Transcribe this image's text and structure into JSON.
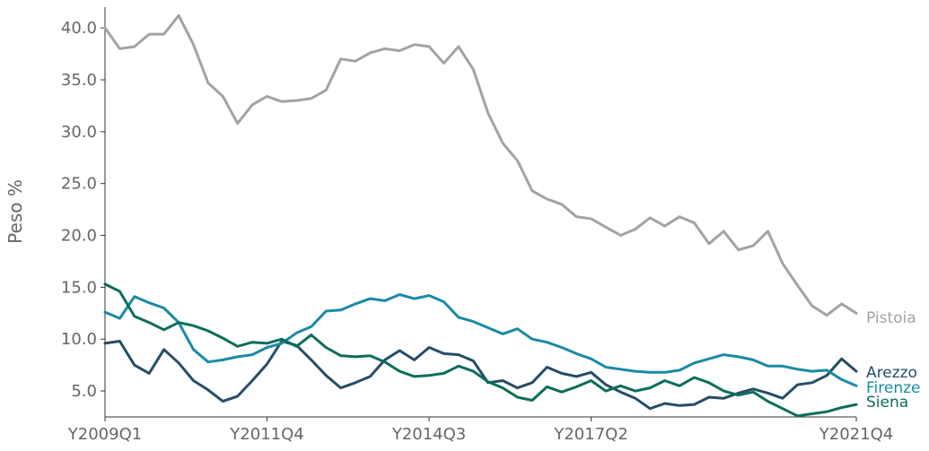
{
  "chart_data": {
    "type": "line",
    "ylabel": "Peso %",
    "xlabel": "",
    "ylim": [
      2.5,
      42.0
    ],
    "yticks": [
      5.0,
      10.0,
      15.0,
      20.0,
      25.0,
      30.0,
      35.0,
      40.0
    ],
    "ytick_labels": [
      "5.0",
      "10.0",
      "15.0",
      "20.0",
      "25.0",
      "30.0",
      "35.0",
      "40.0"
    ],
    "xtick_labels": [
      "Y2009Q1",
      "Y2011Q4",
      "Y2014Q3",
      "Y2017Q2",
      "Y2021Q4"
    ],
    "xtick_indices": [
      0,
      11,
      22,
      33,
      51
    ],
    "grid": false,
    "legend": "end-of-line labels",
    "x": [
      "Y2009Q1",
      "Y2009Q2",
      "Y2009Q3",
      "Y2009Q4",
      "Y2010Q1",
      "Y2010Q2",
      "Y2010Q3",
      "Y2010Q4",
      "Y2011Q1",
      "Y2011Q2",
      "Y2011Q3",
      "Y2011Q4",
      "Y2012Q1",
      "Y2012Q2",
      "Y2012Q3",
      "Y2012Q4",
      "Y2013Q1",
      "Y2013Q2",
      "Y2013Q3",
      "Y2013Q4",
      "Y2014Q1",
      "Y2014Q2",
      "Y2014Q3",
      "Y2014Q4",
      "Y2015Q1",
      "Y2015Q2",
      "Y2015Q3",
      "Y2015Q4",
      "Y2016Q1",
      "Y2016Q2",
      "Y2016Q3",
      "Y2016Q4",
      "Y2017Q1",
      "Y2017Q2",
      "Y2017Q3",
      "Y2017Q4",
      "Y2018Q1",
      "Y2018Q2",
      "Y2018Q3",
      "Y2018Q4",
      "Y2019Q1",
      "Y2019Q2",
      "Y2019Q3",
      "Y2019Q4",
      "Y2020Q1",
      "Y2020Q2",
      "Y2020Q3",
      "Y2020Q4",
      "Y2021Q1",
      "Y2021Q2",
      "Y2021Q3",
      "Y2021Q4"
    ],
    "series": [
      {
        "name": "Pistoia",
        "color": "#a3a3a3",
        "values": [
          40.0,
          38.0,
          38.2,
          39.4,
          39.4,
          41.2,
          38.4,
          34.7,
          33.4,
          30.8,
          32.6,
          33.4,
          32.9,
          33.0,
          33.2,
          34.0,
          37.0,
          36.8,
          37.6,
          38.0,
          37.8,
          38.4,
          38.2,
          36.6,
          38.2,
          36.0,
          31.8,
          28.9,
          27.2,
          24.3,
          23.5,
          23.0,
          21.8,
          21.6,
          20.8,
          20.0,
          20.6,
          21.7,
          20.9,
          21.8,
          21.2,
          19.2,
          20.4,
          18.6,
          19.0,
          20.4,
          17.3,
          15.2,
          13.2,
          12.3,
          13.4,
          12.5
        ]
      },
      {
        "name": "Arezzo",
        "color": "#264d66",
        "values": [
          9.6,
          9.8,
          7.5,
          6.7,
          9.0,
          7.7,
          6.0,
          5.1,
          4.0,
          4.5,
          6.0,
          7.6,
          9.8,
          9.4,
          8.0,
          6.5,
          5.3,
          5.8,
          6.4,
          8.0,
          8.9,
          8.0,
          9.2,
          8.6,
          8.5,
          7.9,
          5.8,
          6.0,
          5.3,
          5.8,
          7.3,
          6.7,
          6.4,
          6.8,
          5.6,
          4.9,
          4.3,
          3.3,
          3.8,
          3.6,
          3.7,
          4.4,
          4.3,
          4.8,
          5.2,
          4.8,
          4.3,
          5.6,
          5.8,
          6.5,
          8.1,
          6.9
        ]
      },
      {
        "name": "Firenze",
        "color": "#1a8aa6",
        "values": [
          12.6,
          12.0,
          14.1,
          13.5,
          13.0,
          11.6,
          9.0,
          7.8,
          8.0,
          8.3,
          8.5,
          9.2,
          9.6,
          10.6,
          11.2,
          12.7,
          12.8,
          13.4,
          13.9,
          13.7,
          14.3,
          13.9,
          14.2,
          13.6,
          12.1,
          11.7,
          11.1,
          10.5,
          11.0,
          10.0,
          9.7,
          9.2,
          8.6,
          8.1,
          7.3,
          7.1,
          6.9,
          6.8,
          6.8,
          7.0,
          7.7,
          8.1,
          8.5,
          8.3,
          8.0,
          7.4,
          7.4,
          7.1,
          6.9,
          7.0,
          6.1,
          5.5
        ]
      },
      {
        "name": "Siena",
        "color": "#0d6e5a",
        "values": [
          15.3,
          14.6,
          12.2,
          11.6,
          10.9,
          11.6,
          11.3,
          10.8,
          10.1,
          9.3,
          9.7,
          9.6,
          10.0,
          9.3,
          10.4,
          9.2,
          8.4,
          8.3,
          8.4,
          7.8,
          6.9,
          6.4,
          6.5,
          6.7,
          7.4,
          6.9,
          5.9,
          5.3,
          4.4,
          4.1,
          5.4,
          4.9,
          5.4,
          6.0,
          5.0,
          5.5,
          5.0,
          5.3,
          6.0,
          5.5,
          6.3,
          5.8,
          5.0,
          4.6,
          4.9,
          4.0,
          3.3,
          2.6,
          2.8,
          3.0,
          3.4,
          3.7
        ]
      }
    ],
    "end_labels": [
      {
        "series": "Pistoia",
        "text": "Pistoia"
      },
      {
        "series": "Arezzo",
        "text": "Arezzo"
      },
      {
        "series": "Firenze",
        "text": "Firenze"
      },
      {
        "series": "Siena",
        "text": "Siena"
      }
    ]
  }
}
